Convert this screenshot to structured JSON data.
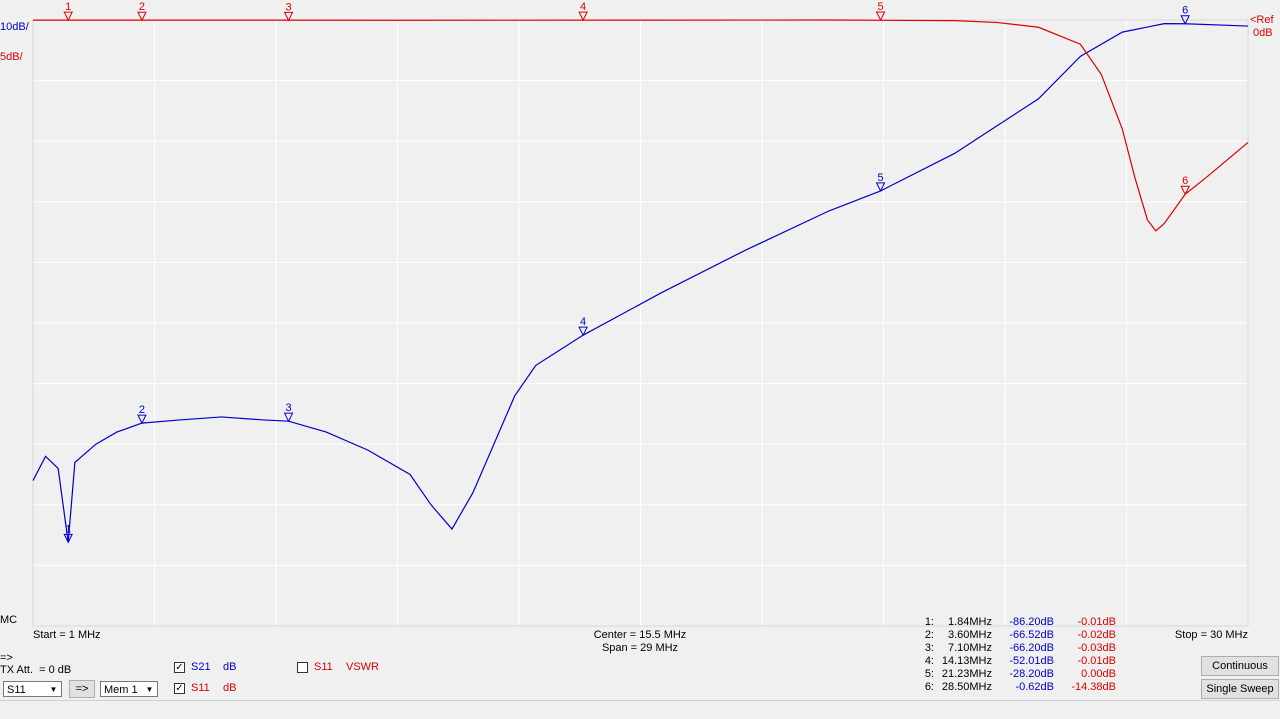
{
  "chart_data": {
    "type": "line",
    "scale_labels": [
      "10dB/",
      "5dB/"
    ],
    "ref_label": "<Ref",
    "ref_value_label": "0dB",
    "xlim": [
      1,
      30
    ],
    "ylim": [
      -100,
      0
    ],
    "y2lim": [
      -50,
      0
    ],
    "grid": true,
    "series": [
      {
        "name": "S21",
        "color": "#0000cc",
        "x": [
          1,
          1.3,
          1.6,
          1.84,
          2,
          2.5,
          3,
          3.6,
          4.5,
          5.5,
          6.5,
          7.1,
          8,
          9,
          10,
          10.5,
          11,
          11.5,
          12,
          12.5,
          13,
          14.13,
          16,
          18,
          20,
          21.23,
          23,
          25,
          26,
          27,
          28,
          28.5,
          30
        ],
        "values": [
          -76,
          -72,
          -74,
          -86.2,
          -73,
          -70,
          -68,
          -66.52,
          -66,
          -65.5,
          -66,
          -66.2,
          -68,
          -71,
          -75,
          -80,
          -84,
          -78,
          -70,
          -62,
          -57,
          -52.01,
          -45,
          -38,
          -31.5,
          -28.2,
          -22,
          -13,
          -6,
          -2,
          -0.6,
          -0.62,
          -1
        ]
      },
      {
        "name": "S11",
        "color": "#dd0000",
        "axis": "y2",
        "x": [
          1,
          5,
          10,
          15,
          20,
          23,
          24,
          25,
          26,
          26.5,
          27,
          27.3,
          27.6,
          27.8,
          28,
          28.5,
          29,
          30
        ],
        "values": [
          -0.01,
          -0.01,
          -0.02,
          -0.01,
          0,
          -0.05,
          -0.2,
          -0.6,
          -2,
          -4.5,
          -9,
          -13,
          -16.5,
          -17.4,
          -16.8,
          -14.38,
          -13,
          -10.1
        ]
      }
    ]
  },
  "markers": [
    {
      "id": "1",
      "row_label": "1:",
      "freq": 1.84,
      "freq_label": "1.84MHz",
      "s21": -86.2,
      "s21_label": "-86.20dB",
      "s11": -0.01,
      "s11_label": "-0.01dB"
    },
    {
      "id": "2",
      "row_label": "2:",
      "freq": 3.6,
      "freq_label": "3.60MHz",
      "s21": -66.52,
      "s21_label": "-66.52dB",
      "s11": -0.02,
      "s11_label": "-0.02dB"
    },
    {
      "id": "3",
      "row_label": "3:",
      "freq": 7.1,
      "freq_label": "7.10MHz",
      "s21": -66.2,
      "s21_label": "-66.20dB",
      "s11": -0.03,
      "s11_label": "-0.03dB"
    },
    {
      "id": "4",
      "row_label": "4:",
      "freq": 14.13,
      "freq_label": "14.13MHz",
      "s21": -52.01,
      "s21_label": "-52.01dB",
      "s11": -0.01,
      "s11_label": "-0.01dB"
    },
    {
      "id": "5",
      "row_label": "5:",
      "freq": 21.23,
      "freq_label": "21.23MHz",
      "s21": -28.2,
      "s21_label": "-28.20dB",
      "s11": 0,
      "s11_label": "0.00dB"
    },
    {
      "id": "6",
      "row_label": "6:",
      "freq": 28.5,
      "freq_label": "28.50MHz",
      "s21": -0.62,
      "s21_label": "-0.62dB",
      "s11": -14.38,
      "s11_label": "-14.38dB"
    }
  ],
  "footer": {
    "mc": "MC",
    "start": "Start = 1 MHz",
    "center": "Center = 15.5 MHz",
    "span": "Span = 29 MHz",
    "stop": "Stop = 30 MHz"
  },
  "controls": {
    "arrow_label": "=>",
    "tx_att": "TX Att.  = 0 dB",
    "trace_select": "S11",
    "arrow_button": "=>",
    "mem_select": "Mem 1",
    "check_s21": "S21",
    "check_s21_unit": "dB",
    "check_s11": "S11",
    "check_s11_unit": "dB",
    "check_vswr": "S11",
    "check_vswr_unit": "VSWR",
    "continuous": "Continuous",
    "single_sweep": "Single Sweep"
  }
}
